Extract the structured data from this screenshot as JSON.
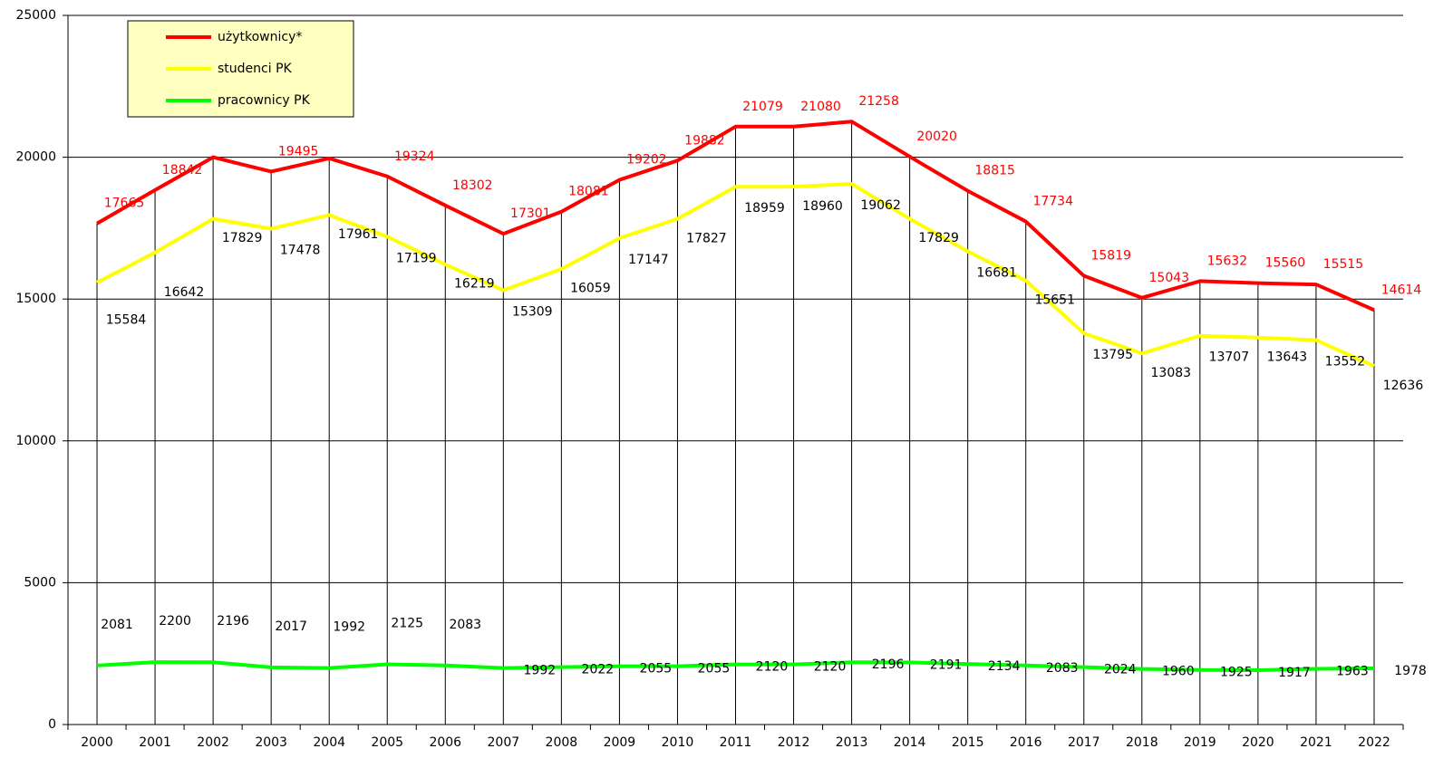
{
  "chart_data": {
    "type": "line",
    "categories": [
      "2000",
      "2001",
      "2002",
      "2003",
      "2004",
      "2005",
      "2006",
      "2007",
      "2008",
      "2009",
      "2010",
      "2011",
      "2012",
      "2013",
      "2014",
      "2015",
      "2016",
      "2017",
      "2018",
      "2019",
      "2020",
      "2021",
      "2022"
    ],
    "series": [
      {
        "name": "użytkownicy*",
        "color": "#ff0000",
        "values": [
          17665,
          18842,
          20000,
          19495,
          19960,
          19324,
          18302,
          17301,
          18081,
          19202,
          19882,
          21079,
          21080,
          21258,
          20020,
          18815,
          17734,
          15819,
          15043,
          15632,
          15560,
          15515,
          14614
        ],
        "value_labels": [
          "17665",
          "18842",
          null,
          "19495",
          null,
          "19324",
          "18302",
          "17301",
          "18081",
          "19202",
          "19882",
          "21079",
          "21080",
          "21258",
          "20020",
          "18815",
          "17734",
          "15819",
          "15043",
          "15632",
          "15560",
          "15515",
          "14614"
        ]
      },
      {
        "name": "studenci PK",
        "color": "#ffff00",
        "values": [
          15584,
          16642,
          17829,
          17478,
          17961,
          17199,
          16219,
          15309,
          16059,
          17147,
          17827,
          18959,
          18960,
          19062,
          17829,
          16681,
          15651,
          13795,
          13083,
          13707,
          13643,
          13552,
          12636
        ]
      },
      {
        "name": "pracownicy PK",
        "color": "#00ff00",
        "values": [
          2081,
          2200,
          2196,
          2017,
          1992,
          2125,
          2083,
          1992,
          2022,
          2055,
          2055,
          2120,
          2120,
          2196,
          2191,
          2134,
          2083,
          2024,
          1960,
          1925,
          1917,
          1963,
          1978
        ]
      }
    ],
    "ylim": [
      0,
      25000
    ],
    "yticks": [
      0,
      5000,
      10000,
      15000,
      20000,
      25000
    ],
    "grid": true,
    "legend": "upper left"
  }
}
